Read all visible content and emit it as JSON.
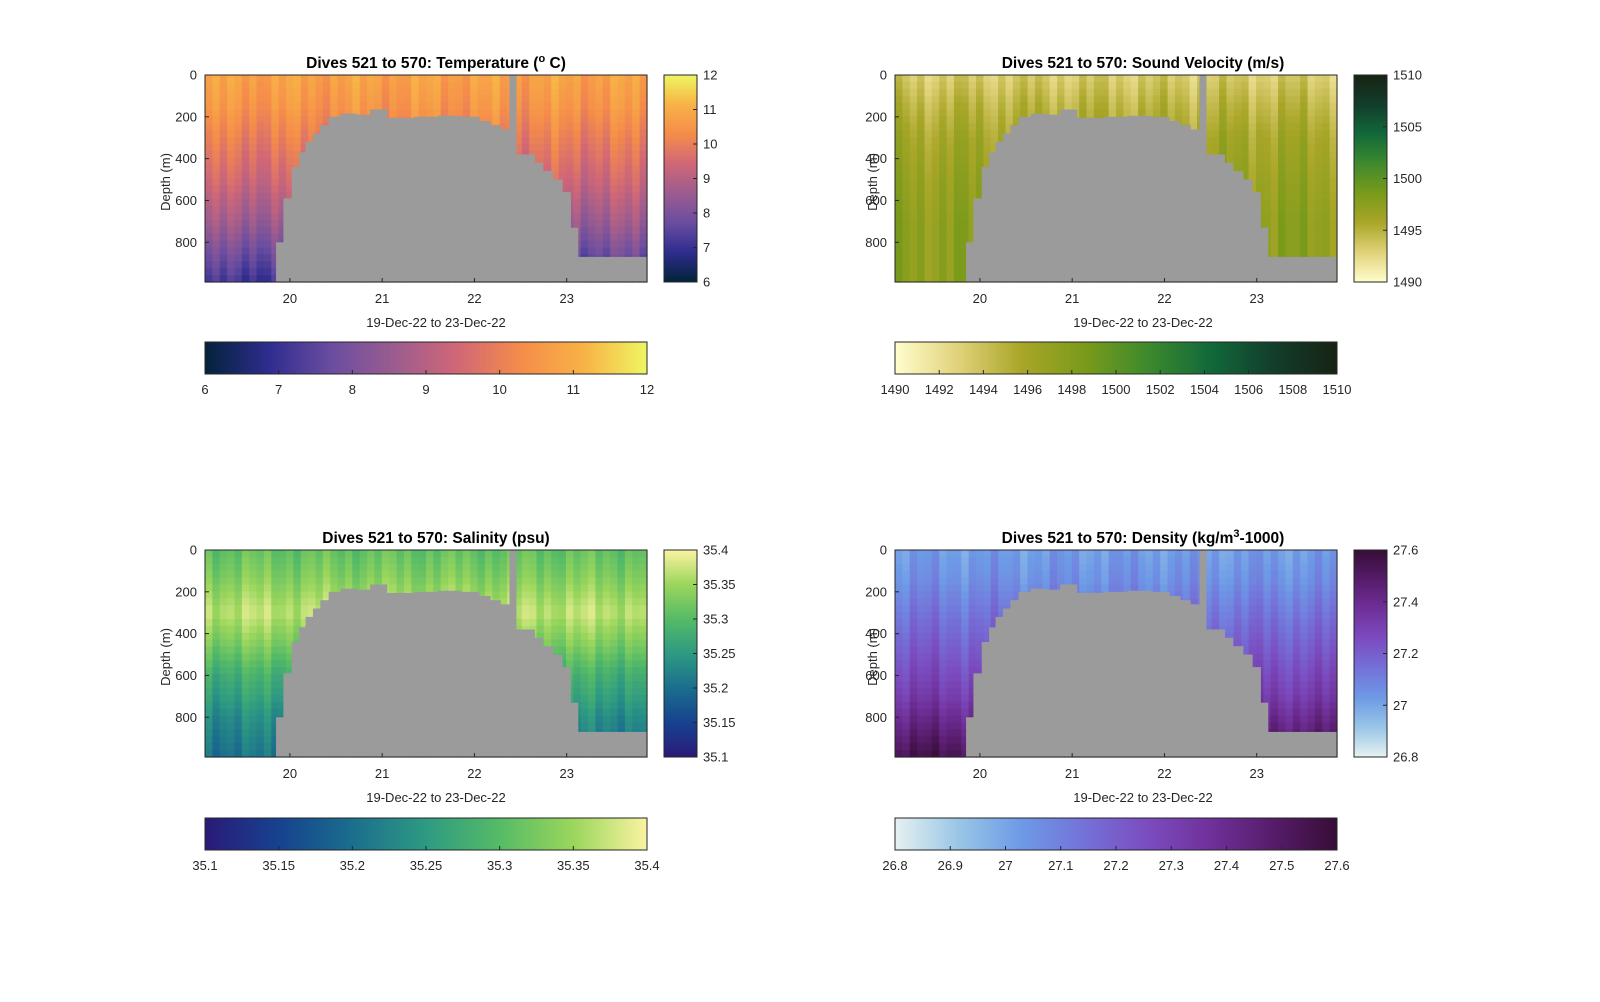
{
  "figure": {
    "xlabel": "19-Dec-22 to 23-Dec-22",
    "ylabel": "Depth (m)",
    "mask_color": "#9b9b9b"
  },
  "chart_data": [
    {
      "type": "heatmap",
      "title_prefix": "Dives 521 to 570: Temperature (",
      "title_sup": "o",
      "title_suffix": " C)",
      "x_domain": [
        19.08,
        23.87
      ],
      "xticks": [
        20,
        21,
        22,
        23
      ],
      "xtick_labels": [
        "20",
        "21",
        "22",
        "23"
      ],
      "y_domain": [
        0,
        990
      ],
      "yticks": [
        0,
        200,
        400,
        600,
        800
      ],
      "ytick_labels": [
        "0",
        "200",
        "400",
        "600",
        "800"
      ],
      "clim": [
        6,
        12
      ],
      "colormap": "thermal",
      "colormap_stops": [
        "#03233a",
        "#2e2c8e",
        "#6a4da0",
        "#9c5c8f",
        "#d06776",
        "#f58c4a",
        "#f8b246",
        "#eef662"
      ],
      "colorbar_right_ticks": [
        6,
        7,
        8,
        9,
        10,
        11,
        12
      ],
      "colorbar_right_labels": [
        "6",
        "7",
        "8",
        "9",
        "10",
        "11",
        "12"
      ],
      "colorbar_bottom_ticks": [
        6,
        7,
        8,
        9,
        10,
        11,
        12
      ],
      "colorbar_bottom_labels": [
        "6",
        "7",
        "8",
        "9",
        "10",
        "11",
        "12"
      ],
      "profile": {
        "depths": [
          0,
          150,
          300,
          500,
          700,
          990
        ],
        "values": [
          10.8,
          10.5,
          10.0,
          9.4,
          8.6,
          7.4
        ]
      }
    },
    {
      "type": "heatmap",
      "title_prefix": "Dives 521 to 570: Sound Velocity (m/s)",
      "title_sup": "",
      "title_suffix": "",
      "x_domain": [
        19.08,
        23.87
      ],
      "xticks": [
        20,
        21,
        22,
        23
      ],
      "xtick_labels": [
        "20",
        "21",
        "22",
        "23"
      ],
      "y_domain": [
        0,
        990
      ],
      "yticks": [
        0,
        200,
        400,
        600,
        800
      ],
      "ytick_labels": [
        "0",
        "200",
        "400",
        "600",
        "800"
      ],
      "clim": [
        1490,
        1510
      ],
      "colormap": "speed",
      "colormap_stops": [
        "#fffdcd",
        "#e0d27a",
        "#a9a628",
        "#7a9a1a",
        "#3e8a2d",
        "#11693a",
        "#133d2b",
        "#172313"
      ],
      "colorbar_right_ticks": [
        1490,
        1495,
        1500,
        1505,
        1510
      ],
      "colorbar_right_labels": [
        "1490",
        "1495",
        "1500",
        "1505",
        "1510"
      ],
      "colorbar_bottom_ticks": [
        1490,
        1492,
        1494,
        1496,
        1498,
        1500,
        1502,
        1504,
        1506,
        1508,
        1510
      ],
      "colorbar_bottom_labels": [
        "1490",
        "1492",
        "1494",
        "1496",
        "1498",
        "1500",
        "1502",
        "1504",
        "1506",
        "1508",
        "1510"
      ],
      "profile": {
        "depths": [
          0,
          150,
          300,
          500,
          700,
          990
        ],
        "values": [
          1493.3,
          1494.8,
          1496.0,
          1496.8,
          1497.4,
          1497.8
        ]
      }
    },
    {
      "type": "heatmap",
      "title_prefix": "Dives 521 to 570: Salinity (psu)",
      "title_sup": "",
      "title_suffix": "",
      "x_domain": [
        19.08,
        23.87
      ],
      "xticks": [
        20,
        21,
        22,
        23
      ],
      "xtick_labels": [
        "20",
        "21",
        "22",
        "23"
      ],
      "y_domain": [
        0,
        990
      ],
      "yticks": [
        0,
        200,
        400,
        600,
        800
      ],
      "ytick_labels": [
        "0",
        "200",
        "400",
        "600",
        "800"
      ],
      "clim": [
        35.1,
        35.4
      ],
      "colormap": "haline",
      "colormap_stops": [
        "#2a1a78",
        "#16428f",
        "#1b6e8d",
        "#2e9a82",
        "#55bb66",
        "#9bd65c",
        "#fbf3a2"
      ],
      "colorbar_right_ticks": [
        35.1,
        35.15,
        35.2,
        35.25,
        35.3,
        35.35,
        35.4
      ],
      "colorbar_right_labels": [
        "35.1",
        "35.15",
        "35.2",
        "35.25",
        "35.3",
        "35.35",
        "35.4"
      ],
      "colorbar_bottom_ticks": [
        35.1,
        35.15,
        35.2,
        35.25,
        35.3,
        35.35,
        35.4
      ],
      "colorbar_bottom_labels": [
        "35.1",
        "35.15",
        "35.2",
        "35.25",
        "35.3",
        "35.35",
        "35.4"
      ],
      "profile": {
        "depths": [
          0,
          120,
          300,
          450,
          600,
          800,
          990
        ],
        "values": [
          35.31,
          35.33,
          35.37,
          35.33,
          35.28,
          35.24,
          35.22
        ]
      }
    },
    {
      "type": "heatmap",
      "title_prefix": "Dives 521 to 570: Density (kg/m",
      "title_sup": "3",
      "title_suffix": "-1000)",
      "x_domain": [
        19.08,
        23.87
      ],
      "xticks": [
        20,
        21,
        22,
        23
      ],
      "xtick_labels": [
        "20",
        "21",
        "22",
        "23"
      ],
      "y_domain": [
        0,
        990
      ],
      "yticks": [
        0,
        200,
        400,
        600,
        800
      ],
      "ytick_labels": [
        "0",
        "200",
        "400",
        "600",
        "800"
      ],
      "clim": [
        26.8,
        27.6
      ],
      "colormap": "dense",
      "colormap_stops": [
        "#e6f1f1",
        "#99c6e6",
        "#6d9ae6",
        "#7471d8",
        "#7b4cbf",
        "#70309a",
        "#561c6a",
        "#360d36"
      ],
      "colorbar_right_ticks": [
        26.8,
        27,
        27.2,
        27.4,
        27.6
      ],
      "colorbar_right_labels": [
        "26.8",
        "27",
        "27.2",
        "27.4",
        "27.6"
      ],
      "colorbar_bottom_ticks": [
        26.8,
        26.9,
        27,
        27.1,
        27.2,
        27.3,
        27.4,
        27.5,
        27.6
      ],
      "colorbar_bottom_labels": [
        "26.8",
        "26.9",
        "27",
        "27.1",
        "27.2",
        "27.3",
        "27.4",
        "27.5",
        "27.6"
      ],
      "profile": {
        "depths": [
          0,
          150,
          300,
          500,
          700,
          990
        ],
        "values": [
          27.02,
          27.06,
          27.13,
          27.22,
          27.32,
          27.47
        ]
      }
    }
  ],
  "no_data_mask": {
    "breaks": [
      19.08,
      19.85,
      19.93,
      20.02,
      20.1,
      20.17,
      20.25,
      20.33,
      20.42,
      20.55,
      20.72,
      20.87,
      21.05,
      21.35,
      21.6,
      21.85,
      22.05,
      22.17,
      22.28,
      22.38,
      22.45,
      22.54,
      22.65,
      22.74,
      22.85,
      22.95,
      23.04,
      23.12,
      23.87
    ],
    "top_depth": [
      990,
      800,
      590,
      440,
      370,
      320,
      280,
      240,
      200,
      185,
      190,
      165,
      205,
      200,
      195,
      200,
      220,
      240,
      260,
      0,
      380,
      380,
      420,
      460,
      500,
      560,
      730,
      870
    ]
  }
}
